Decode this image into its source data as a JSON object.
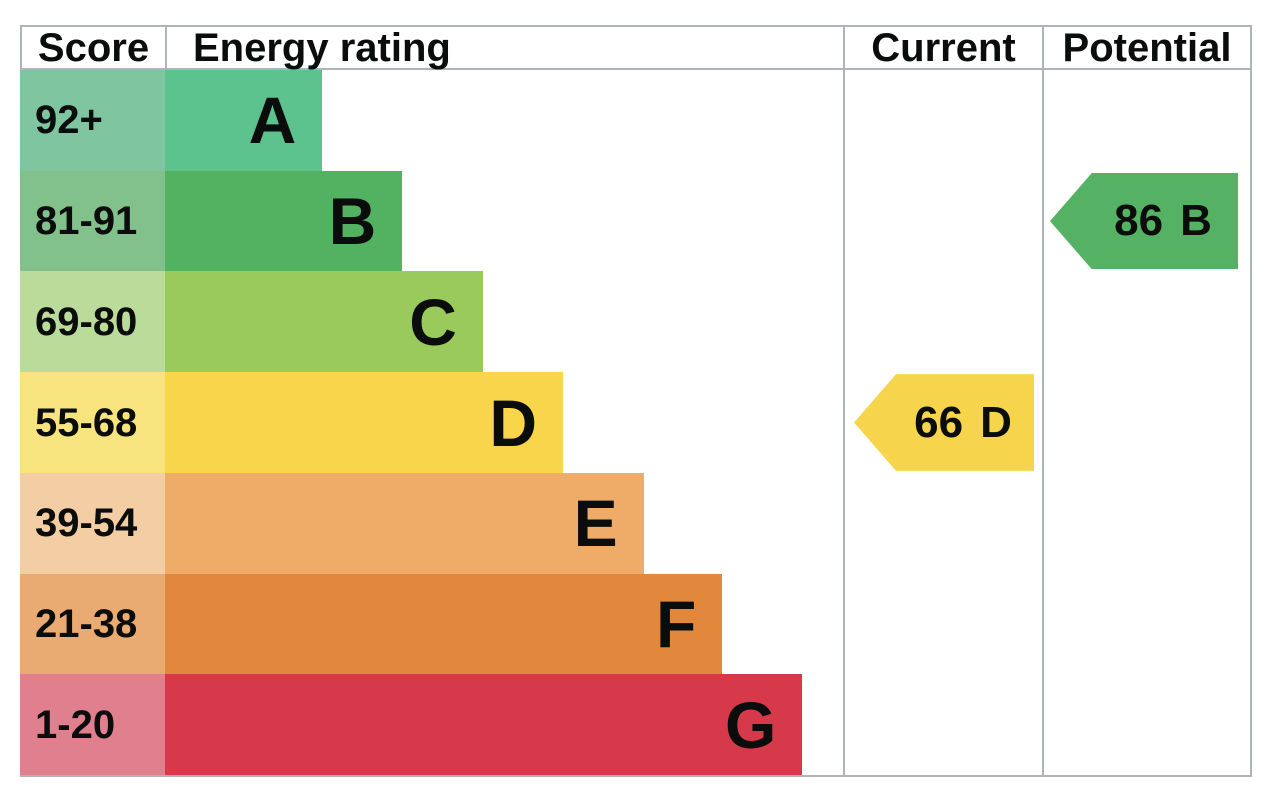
{
  "header": {
    "score": "Score",
    "rating": "Energy rating",
    "current": "Current",
    "potential": "Potential"
  },
  "colors": {
    "border": "#b1b4b6",
    "text": "#0b0c0c",
    "background": "#ffffff"
  },
  "chart_data": {
    "type": "bar",
    "title": "Energy efficiency rating chart (EPC)",
    "columns": [
      "Score",
      "Energy rating",
      "Current",
      "Potential"
    ],
    "bands": [
      {
        "score": "92+",
        "letter": "A",
        "bar_color": "#5cc28e",
        "score_color": "#7fc5a0",
        "bar_width_pct": 23.2
      },
      {
        "score": "81-91",
        "letter": "B",
        "bar_color": "#53b162",
        "score_color": "#82c08c",
        "bar_width_pct": 35.0
      },
      {
        "score": "69-80",
        "letter": "C",
        "bar_color": "#99ca5b",
        "score_color": "#bbdb9b",
        "bar_width_pct": 46.9
      },
      {
        "score": "55-68",
        "letter": "D",
        "bar_color": "#f8d54a",
        "score_color": "#f8e47e",
        "bar_width_pct": 58.7
      },
      {
        "score": "39-54",
        "letter": "E",
        "bar_color": "#efac69",
        "score_color": "#f3cda4",
        "bar_width_pct": 70.6
      },
      {
        "score": "21-38",
        "letter": "F",
        "bar_color": "#e2883c",
        "score_color": "#eaab72",
        "bar_width_pct": 82.2
      },
      {
        "score": "1-20",
        "letter": "G",
        "bar_color": "#d5394a",
        "score_color": "#e07f8e",
        "bar_width_pct": 94.0
      }
    ],
    "current": {
      "value": "66",
      "letter": "D",
      "band_index": 3,
      "color": "#f6d44c"
    },
    "potential": {
      "value": "86",
      "letter": "B",
      "band_index": 1,
      "color": "#55b164"
    }
  }
}
